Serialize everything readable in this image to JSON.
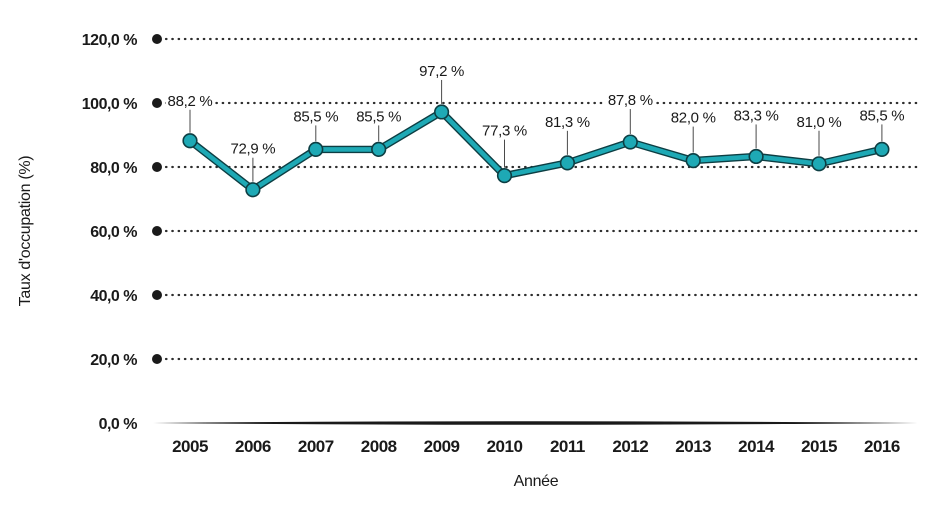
{
  "chart_data": {
    "type": "line",
    "title": "",
    "xlabel": "Année",
    "ylabel": "Taux d'occupation (%)",
    "x": [
      "2005",
      "2006",
      "2007",
      "2008",
      "2009",
      "2010",
      "2011",
      "2012",
      "2013",
      "2014",
      "2015",
      "2016"
    ],
    "series": [
      {
        "name": "Taux d'occupation (%)",
        "values": [
          88.2,
          72.9,
          85.5,
          85.5,
          97.2,
          77.3,
          81.3,
          87.8,
          82.0,
          83.3,
          81.0,
          85.5
        ]
      }
    ],
    "point_labels": [
      "88,2 %",
      "72,9 %",
      "85,5 %",
      "85,5 %",
      "97,2 %",
      "77,3 %",
      "81,3 %",
      "87,8 %",
      "82,0 %",
      "83,3 %",
      "81,0 %",
      "85,5 %"
    ],
    "y_ticks": [
      {
        "label": "120,0 %",
        "value": 120
      },
      {
        "label": "100,0 %",
        "value": 100
      },
      {
        "label": "80,0 %",
        "value": 80
      },
      {
        "label": "60,0 %",
        "value": 60
      },
      {
        "label": "40,0 %",
        "value": 40
      },
      {
        "label": "20,0 %",
        "value": 20
      },
      {
        "label": "0,0 %",
        "value": 0
      }
    ],
    "ylim": [
      0,
      120
    ],
    "grid": "horizontal-dotted",
    "legend": "none",
    "colors": {
      "line": "#1EA9B5",
      "marker_fill": "#1EA9B5",
      "marker_stroke": "#0D3E43",
      "grid_dot": "#2e2e2e",
      "grid_bullet": "#1a1a1a",
      "axis": "#1a1a1a",
      "text": "#1a1a1a",
      "leader": "#4a4a4a"
    }
  }
}
